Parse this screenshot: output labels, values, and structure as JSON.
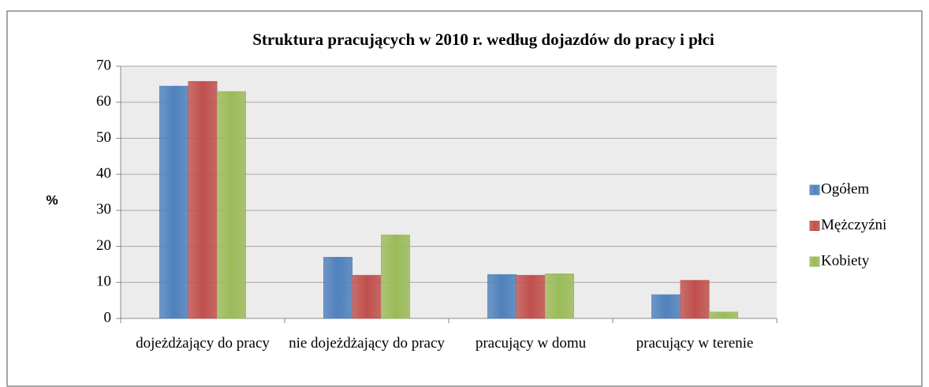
{
  "chart_data": {
    "type": "bar",
    "title": "Struktura pracujących w 2010 r. według dojazdów do pracy i płci",
    "y_label": "%",
    "categories": [
      "dojeżdżający do pracy",
      "nie dojeżdżający do pracy",
      "pracujący w domu",
      "pracujący w terenie"
    ],
    "series": [
      {
        "name": "Ogółem",
        "color": "#4f81bd",
        "values": [
          64.5,
          17,
          12.2,
          6.6
        ]
      },
      {
        "name": "Mężczyźni",
        "color": "#c0504d",
        "values": [
          65.8,
          12,
          12,
          10.6
        ]
      },
      {
        "name": "Kobiety",
        "color": "#9bbb59",
        "values": [
          63,
          23.2,
          12.4,
          1.8
        ]
      }
    ],
    "ylim": [
      0,
      70
    ],
    "yticks": [
      0,
      10,
      20,
      30,
      40,
      50,
      60,
      70
    ],
    "grid": true,
    "legend": "right"
  }
}
